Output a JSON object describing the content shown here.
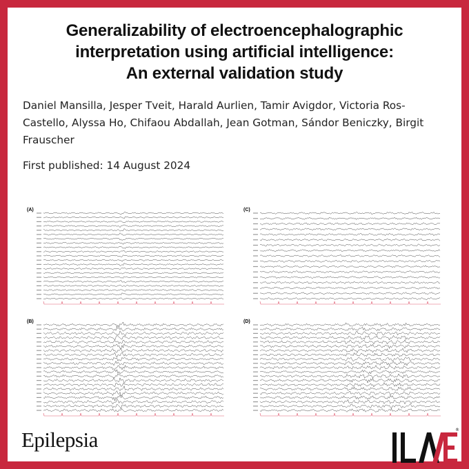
{
  "article": {
    "title_lines": [
      "Generalizability of electroencephalographic",
      "interpretation using artificial intelligence:",
      "An external validation study"
    ],
    "authors": "Daniel Mansilla, Jesper Tveit, Harald Aurlien, Tamir Avigdor, Victoria Ros-Castello, Alyssa Ho, Chifaou Abdallah, Jean Gotman, Sándor Beniczky, Birgit Frauscher",
    "published": "First published: 14 August 2024"
  },
  "figure": {
    "panels": [
      {
        "label": "(A)",
        "pattern": "normal",
        "channels": 21
      },
      {
        "label": "(C)",
        "pattern": "slow",
        "channels": 17
      },
      {
        "label": "(B)",
        "pattern": "burst",
        "channels": 21
      },
      {
        "label": "(D)",
        "pattern": "mixed",
        "channels": 21
      }
    ],
    "trace_color": "#333333",
    "ecg_color": "#e05a70"
  },
  "branding": {
    "journal": "Epilepsia",
    "society_logo": "ILAE",
    "registered": "®",
    "accent": "#c8283e"
  }
}
